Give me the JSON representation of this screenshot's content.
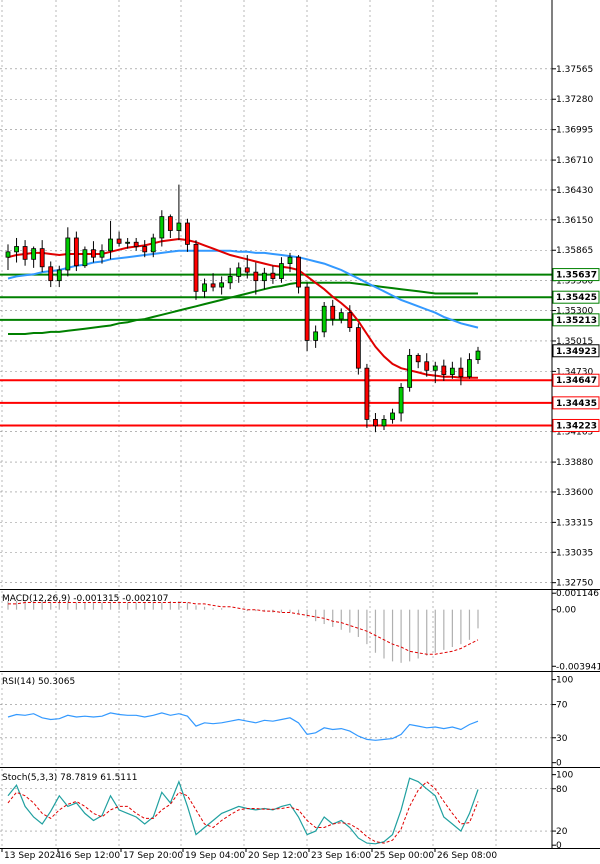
{
  "chart_data": {
    "type": "candlestick",
    "instrument_panels": {
      "price": {
        "ylim": [
          1.327,
          1.3821
        ],
        "ticks": [
          "1.37565",
          "1.37280",
          "1.36995",
          "1.36710",
          "1.36430",
          "1.36150",
          "1.35865",
          "1.35580",
          "1.35300",
          "1.35015",
          "1.34730",
          "1.34165",
          "1.33880",
          "1.33600",
          "1.33315",
          "1.33035",
          "1.32750"
        ],
        "current_price": "1.34923",
        "levels": [
          {
            "value": 1.35637,
            "label": "1.35637",
            "color": "#008000"
          },
          {
            "value": 1.35425,
            "label": "1.35425",
            "color": "#008000"
          },
          {
            "value": 1.35213,
            "label": "1.35213",
            "color": "#008000"
          },
          {
            "value": 1.34647,
            "label": "1.34647",
            "color": "#ff0000"
          },
          {
            "value": 1.34435,
            "label": "1.34435",
            "color": "#ff0000"
          },
          {
            "value": 1.34223,
            "label": "1.34223",
            "color": "#ff0000"
          }
        ]
      },
      "macd": {
        "label": "MACD(12,26,9) -0.001315 -0.002107",
        "ylim": [
          -0.0042,
          0.0013
        ],
        "ticks": [
          "0.001146",
          "0.00",
          "-0.003941"
        ]
      },
      "rsi": {
        "label": "RSI(14) 50.3065",
        "ylim": [
          -4,
          108
        ],
        "ticks": [
          "100",
          "70",
          "30",
          "0"
        ]
      },
      "stoch": {
        "label": "Stoch(5,3,3) 78.7819 61.5111",
        "ylim": [
          -4,
          108
        ],
        "ticks": [
          "100",
          "80",
          "20",
          "0"
        ]
      }
    },
    "x_labels": [
      "13 Sep 2024",
      "16 Sep 12:00",
      "17 Sep 20:00",
      "19 Sep 04:00",
      "20 Sep 12:00",
      "23 Sep 16:00",
      "25 Sep 00:00",
      "26 Sep 08:00"
    ],
    "candles": [
      {
        "o": 1.358,
        "h": 1.3592,
        "l": 1.3568,
        "c": 1.3585
      },
      {
        "o": 1.3585,
        "h": 1.3598,
        "l": 1.3575,
        "c": 1.359
      },
      {
        "o": 1.359,
        "h": 1.3596,
        "l": 1.3572,
        "c": 1.3578
      },
      {
        "o": 1.3578,
        "h": 1.359,
        "l": 1.357,
        "c": 1.3588
      },
      {
        "o": 1.3588,
        "h": 1.3596,
        "l": 1.3566,
        "c": 1.3571
      },
      {
        "o": 1.3571,
        "h": 1.3576,
        "l": 1.3552,
        "c": 1.3558
      },
      {
        "o": 1.3558,
        "h": 1.3572,
        "l": 1.3552,
        "c": 1.3568
      },
      {
        "o": 1.3568,
        "h": 1.3608,
        "l": 1.3562,
        "c": 1.3598
      },
      {
        "o": 1.3598,
        "h": 1.3604,
        "l": 1.3567,
        "c": 1.3572
      },
      {
        "o": 1.3572,
        "h": 1.359,
        "l": 1.357,
        "c": 1.3587
      },
      {
        "o": 1.3587,
        "h": 1.3595,
        "l": 1.3575,
        "c": 1.358
      },
      {
        "o": 1.358,
        "h": 1.3592,
        "l": 1.3574,
        "c": 1.3586
      },
      {
        "o": 1.3586,
        "h": 1.3614,
        "l": 1.3578,
        "c": 1.3597
      },
      {
        "o": 1.3597,
        "h": 1.3604,
        "l": 1.359,
        "c": 1.3593
      },
      {
        "o": 1.3593,
        "h": 1.3598,
        "l": 1.3588,
        "c": 1.3594
      },
      {
        "o": 1.3594,
        "h": 1.3598,
        "l": 1.3586,
        "c": 1.359
      },
      {
        "o": 1.359,
        "h": 1.3596,
        "l": 1.358,
        "c": 1.3585
      },
      {
        "o": 1.3585,
        "h": 1.3602,
        "l": 1.358,
        "c": 1.3598
      },
      {
        "o": 1.3598,
        "h": 1.3624,
        "l": 1.359,
        "c": 1.3618
      },
      {
        "o": 1.3618,
        "h": 1.362,
        "l": 1.3598,
        "c": 1.3605
      },
      {
        "o": 1.3605,
        "h": 1.3648,
        "l": 1.3596,
        "c": 1.3612
      },
      {
        "o": 1.3612,
        "h": 1.3616,
        "l": 1.3585,
        "c": 1.3592
      },
      {
        "o": 1.3592,
        "h": 1.3596,
        "l": 1.354,
        "c": 1.3548
      },
      {
        "o": 1.3548,
        "h": 1.356,
        "l": 1.3542,
        "c": 1.3555
      },
      {
        "o": 1.3555,
        "h": 1.3565,
        "l": 1.3548,
        "c": 1.3552
      },
      {
        "o": 1.3552,
        "h": 1.3562,
        "l": 1.3545,
        "c": 1.3556
      },
      {
        "o": 1.3556,
        "h": 1.357,
        "l": 1.355,
        "c": 1.3562
      },
      {
        "o": 1.3562,
        "h": 1.3575,
        "l": 1.3556,
        "c": 1.357
      },
      {
        "o": 1.357,
        "h": 1.3582,
        "l": 1.356,
        "c": 1.3566
      },
      {
        "o": 1.3566,
        "h": 1.3575,
        "l": 1.3545,
        "c": 1.3558
      },
      {
        "o": 1.3558,
        "h": 1.357,
        "l": 1.355,
        "c": 1.3565
      },
      {
        "o": 1.3565,
        "h": 1.3572,
        "l": 1.3555,
        "c": 1.356
      },
      {
        "o": 1.356,
        "h": 1.358,
        "l": 1.3556,
        "c": 1.3574
      },
      {
        "o": 1.3574,
        "h": 1.3584,
        "l": 1.3566,
        "c": 1.358
      },
      {
        "o": 1.358,
        "h": 1.3582,
        "l": 1.3546,
        "c": 1.3552
      },
      {
        "o": 1.3552,
        "h": 1.3556,
        "l": 1.3492,
        "c": 1.3502
      },
      {
        "o": 1.3502,
        "h": 1.3516,
        "l": 1.3495,
        "c": 1.351
      },
      {
        "o": 1.351,
        "h": 1.3538,
        "l": 1.3505,
        "c": 1.3534
      },
      {
        "o": 1.3534,
        "h": 1.354,
        "l": 1.3516,
        "c": 1.3522
      },
      {
        "o": 1.3522,
        "h": 1.3532,
        "l": 1.3518,
        "c": 1.3528
      },
      {
        "o": 1.3528,
        "h": 1.3535,
        "l": 1.351,
        "c": 1.3514
      },
      {
        "o": 1.3514,
        "h": 1.3518,
        "l": 1.347,
        "c": 1.3476
      },
      {
        "o": 1.3476,
        "h": 1.348,
        "l": 1.342,
        "c": 1.3428
      },
      {
        "o": 1.3428,
        "h": 1.3434,
        "l": 1.3416,
        "c": 1.3422
      },
      {
        "o": 1.3422,
        "h": 1.3432,
        "l": 1.3418,
        "c": 1.3428
      },
      {
        "o": 1.3428,
        "h": 1.3438,
        "l": 1.3424,
        "c": 1.3434
      },
      {
        "o": 1.3434,
        "h": 1.3462,
        "l": 1.3426,
        "c": 1.3458
      },
      {
        "o": 1.3458,
        "h": 1.3494,
        "l": 1.3454,
        "c": 1.3488
      },
      {
        "o": 1.3488,
        "h": 1.349,
        "l": 1.3476,
        "c": 1.3482
      },
      {
        "o": 1.3482,
        "h": 1.349,
        "l": 1.3468,
        "c": 1.3474
      },
      {
        "o": 1.3474,
        "h": 1.3482,
        "l": 1.3462,
        "c": 1.3478
      },
      {
        "o": 1.3478,
        "h": 1.3484,
        "l": 1.3464,
        "c": 1.347
      },
      {
        "o": 1.347,
        "h": 1.3482,
        "l": 1.3466,
        "c": 1.3476
      },
      {
        "o": 1.3476,
        "h": 1.3486,
        "l": 1.346,
        "c": 1.3468
      },
      {
        "o": 1.3468,
        "h": 1.349,
        "l": 1.3466,
        "c": 1.3484
      },
      {
        "o": 1.3484,
        "h": 1.3496,
        "l": 1.348,
        "c": 1.3492
      }
    ],
    "ma_red": [
      1.358,
      1.3582,
      1.3583,
      1.3584,
      1.3584,
      1.3583,
      1.3582,
      1.3583,
      1.3583,
      1.3583,
      1.3583,
      1.3583,
      1.3585,
      1.3587,
      1.3589,
      1.359,
      1.3591,
      1.3593,
      1.3595,
      1.3596,
      1.3597,
      1.3596,
      1.3594,
      1.3591,
      1.3588,
      1.3585,
      1.3582,
      1.358,
      1.3578,
      1.3576,
      1.3574,
      1.3572,
      1.3571,
      1.357,
      1.3568,
      1.3562,
      1.3556,
      1.355,
      1.3543,
      1.3537,
      1.353,
      1.352,
      1.3508,
      1.3496,
      1.3487,
      1.348,
      1.3476,
      1.3474,
      1.3472,
      1.347,
      1.3469,
      1.3468,
      1.3468,
      1.3467,
      1.3467,
      1.3467
    ],
    "ma_blue": [
      1.356,
      1.3562,
      1.3563,
      1.3564,
      1.3566,
      1.3567,
      1.3568,
      1.357,
      1.3572,
      1.3573,
      1.3575,
      1.3576,
      1.3578,
      1.3579,
      1.358,
      1.3581,
      1.3582,
      1.3583,
      1.3584,
      1.3585,
      1.3586,
      1.3586,
      1.3586,
      1.3586,
      1.3586,
      1.3586,
      1.3586,
      1.3585,
      1.3585,
      1.3584,
      1.3584,
      1.3583,
      1.3582,
      1.3581,
      1.358,
      1.3578,
      1.3576,
      1.3574,
      1.3571,
      1.3568,
      1.3564,
      1.356,
      1.3556,
      1.3552,
      1.3548,
      1.3544,
      1.354,
      1.3537,
      1.3534,
      1.3531,
      1.3528,
      1.3524,
      1.3521,
      1.3518,
      1.3516,
      1.3514
    ],
    "ma_green": [
      1.3508,
      1.3508,
      1.3508,
      1.3509,
      1.3509,
      1.351,
      1.351,
      1.3511,
      1.3512,
      1.3513,
      1.3514,
      1.3515,
      1.3516,
      1.3518,
      1.3519,
      1.3521,
      1.3522,
      1.3524,
      1.3526,
      1.3528,
      1.353,
      1.3532,
      1.3534,
      1.3536,
      1.3538,
      1.354,
      1.3542,
      1.3544,
      1.3546,
      1.3548,
      1.355,
      1.3552,
      1.3553,
      1.3555,
      1.3556,
      1.3556,
      1.3556,
      1.3556,
      1.3556,
      1.3556,
      1.3556,
      1.3555,
      1.3554,
      1.3553,
      1.3552,
      1.3551,
      1.355,
      1.3549,
      1.3548,
      1.3547,
      1.3546,
      1.3546,
      1.3546,
      1.3546,
      1.3546,
      1.3546
    ],
    "macd_hist": [
      0.0006,
      0.0006,
      0.0006,
      0.0006,
      0.0006,
      0.0005,
      0.0005,
      0.0005,
      0.0005,
      0.0005,
      0.0005,
      0.0005,
      0.0005,
      0.0005,
      0.0005,
      0.0005,
      0.0005,
      0.0005,
      0.0005,
      0.0006,
      0.0006,
      0.0005,
      0.0003,
      0.0002,
      0.0001,
      0.0001,
      0.0,
      0.0,
      -0.0001,
      -0.0001,
      -0.0001,
      -0.0002,
      -0.0002,
      -0.0002,
      -0.0003,
      -0.0005,
      -0.0008,
      -0.001,
      -0.0012,
      -0.0014,
      -0.0016,
      -0.0019,
      -0.0024,
      -0.003,
      -0.0034,
      -0.0036,
      -0.0037,
      -0.0036,
      -0.0034,
      -0.0032,
      -0.003,
      -0.0028,
      -0.0026,
      -0.0024,
      -0.0021,
      -0.0013
    ],
    "macd_signal": [
      0.0004,
      0.0004,
      0.0005,
      0.0005,
      0.0005,
      0.0005,
      0.0005,
      0.0005,
      0.0005,
      0.0005,
      0.0005,
      0.0005,
      0.0005,
      0.0005,
      0.0005,
      0.0005,
      0.0005,
      0.0005,
      0.0005,
      0.0005,
      0.0005,
      0.0005,
      0.0004,
      0.0004,
      0.0003,
      0.0002,
      0.0002,
      0.0001,
      0.0,
      0.0,
      -0.0001,
      -0.0001,
      -0.0002,
      -0.0002,
      -0.0003,
      -0.0004,
      -0.0005,
      -0.0006,
      -0.0008,
      -0.0009,
      -0.0011,
      -0.0013,
      -0.0015,
      -0.0018,
      -0.0021,
      -0.0024,
      -0.0026,
      -0.0029,
      -0.003,
      -0.0031,
      -0.0031,
      -0.003,
      -0.0029,
      -0.0027,
      -0.0024,
      -0.0021
    ],
    "rsi": [
      55,
      58,
      57,
      59,
      54,
      52,
      53,
      57,
      55,
      56,
      55,
      56,
      60,
      58,
      57,
      57,
      55,
      57,
      60,
      57,
      59,
      56,
      44,
      48,
      47,
      48,
      50,
      52,
      50,
      48,
      51,
      50,
      52,
      54,
      48,
      34,
      36,
      42,
      40,
      41,
      38,
      32,
      28,
      27,
      28,
      29,
      34,
      46,
      44,
      42,
      43,
      41,
      43,
      40,
      46,
      50
    ],
    "stoch_k": [
      70,
      85,
      55,
      40,
      30,
      48,
      70,
      55,
      60,
      45,
      35,
      42,
      70,
      50,
      45,
      40,
      30,
      40,
      75,
      60,
      90,
      55,
      15,
      25,
      35,
      45,
      50,
      55,
      52,
      50,
      52,
      50,
      55,
      58,
      40,
      15,
      20,
      40,
      30,
      35,
      25,
      10,
      3,
      2,
      5,
      15,
      50,
      95,
      90,
      80,
      70,
      40,
      30,
      20,
      45,
      79
    ],
    "stoch_d": [
      60,
      75,
      70,
      60,
      45,
      38,
      50,
      58,
      62,
      55,
      45,
      40,
      50,
      55,
      55,
      45,
      38,
      38,
      50,
      58,
      75,
      70,
      50,
      30,
      25,
      35,
      43,
      50,
      52,
      52,
      51,
      51,
      52,
      54,
      50,
      35,
      25,
      25,
      30,
      32,
      30,
      23,
      12,
      5,
      3,
      7,
      23,
      55,
      78,
      90,
      80,
      62,
      45,
      30,
      32,
      62
    ]
  }
}
